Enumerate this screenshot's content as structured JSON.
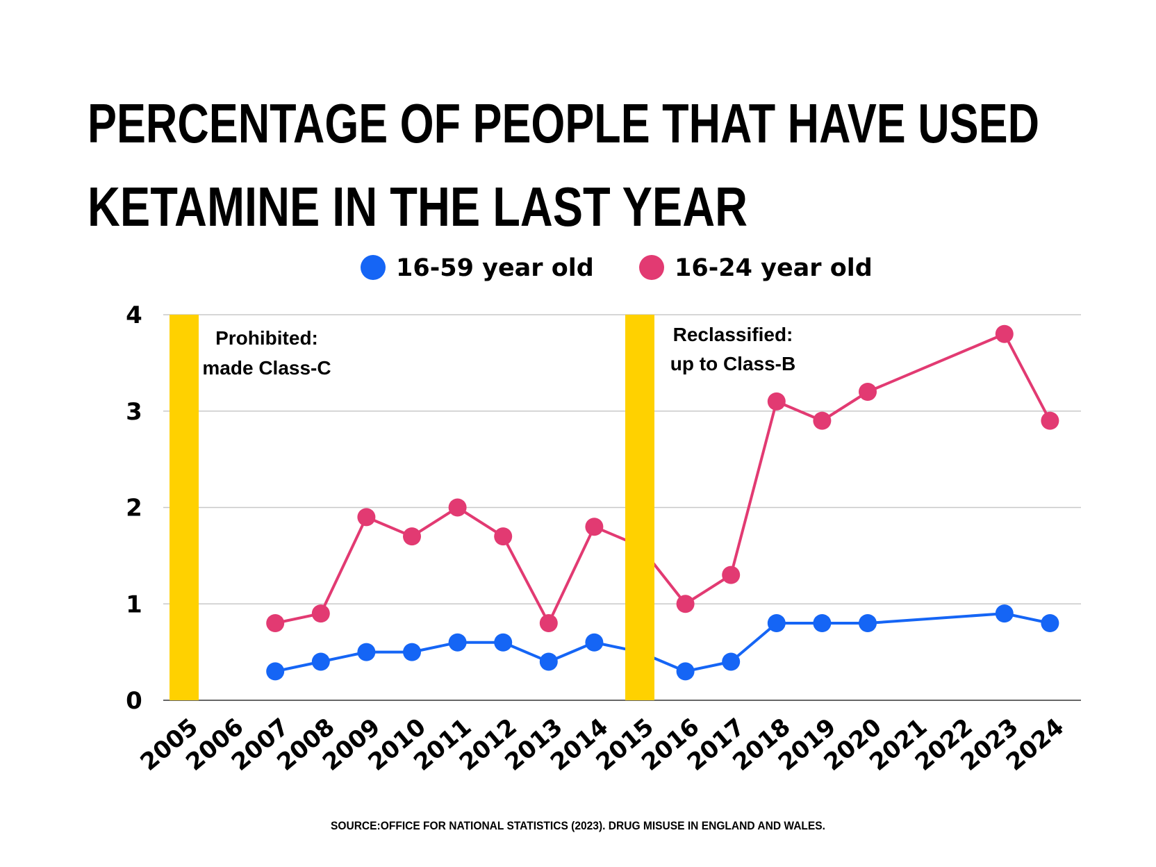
{
  "chart_data": {
    "type": "line",
    "title_lines": [
      "PERCENTAGE OF PEOPLE THAT HAVE USED",
      "KETAMINE IN THE LAST YEAR"
    ],
    "categories": [
      "2005",
      "2006",
      "2007",
      "2008",
      "2009",
      "2010",
      "2011",
      "2012",
      "2013",
      "2014",
      "2015",
      "2016",
      "2017",
      "2018",
      "2019",
      "2020",
      "2021",
      "2022",
      "2023",
      "2024"
    ],
    "series": [
      {
        "name": "16-59 year old",
        "color": "#1565f5",
        "values": [
          null,
          null,
          0.3,
          0.4,
          0.5,
          0.5,
          0.6,
          0.6,
          0.4,
          0.6,
          0.5,
          0.3,
          0.4,
          0.8,
          0.8,
          0.8,
          null,
          null,
          0.9,
          0.8
        ]
      },
      {
        "name": "16-24 year old",
        "color": "#e23a72",
        "values": [
          null,
          null,
          0.8,
          0.9,
          1.9,
          1.7,
          2.0,
          1.7,
          0.8,
          1.8,
          1.6,
          1.0,
          1.3,
          3.1,
          2.9,
          3.2,
          null,
          null,
          3.8,
          2.9
        ]
      }
    ],
    "ylim": [
      0,
      4
    ],
    "yticks": [
      "0",
      "1",
      "2",
      "3",
      "4"
    ],
    "grid": true,
    "legend_position": "top-center",
    "highlight_color": "#ffd100",
    "highlight_years": [
      "2005",
      "2015"
    ],
    "annotations": [
      {
        "year": "2005",
        "lines": [
          "Prohibited:",
          "made Class-C"
        ]
      },
      {
        "year": "2015",
        "lines": [
          "Reclassified:",
          "up to Class-B"
        ]
      }
    ],
    "source": "SOURCE:OFFICE FOR NATIONAL STATISTICS (2023). DRUG MISUSE IN ENGLAND AND WALES."
  }
}
